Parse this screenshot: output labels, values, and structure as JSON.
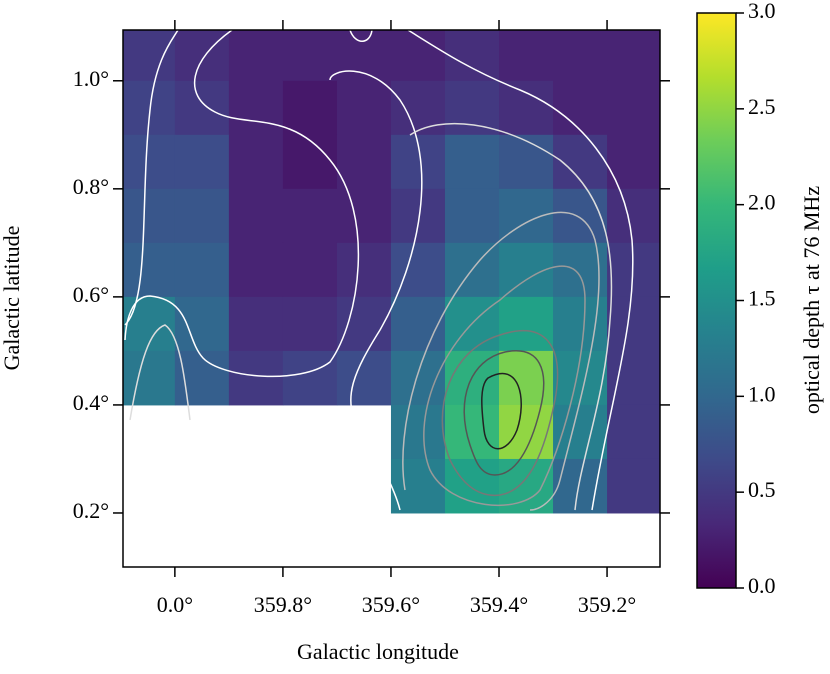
{
  "chart_data": {
    "type": "heatmap",
    "xlabel": "Galactic longitude",
    "ylabel": "Galactic latitude",
    "colorbar_label": "optical depth τ at 76 MHz",
    "colormap": "viridis",
    "x": [
      0.05,
      -0.05,
      -0.15,
      -0.25,
      -0.35,
      -0.45,
      -0.55,
      -0.65,
      -0.75,
      -0.85
    ],
    "y": [
      1.05,
      0.95,
      0.85,
      0.75,
      0.65,
      0.55,
      0.45,
      0.35,
      0.25,
      0.15
    ],
    "z": [
      [
        0.5,
        0.4,
        0.3,
        0.3,
        0.3,
        0.3,
        0.4,
        0.3,
        0.3,
        0.3
      ],
      [
        0.6,
        0.5,
        0.3,
        0.2,
        0.3,
        0.4,
        0.5,
        0.4,
        0.3,
        0.3
      ],
      [
        0.7,
        0.7,
        0.3,
        0.2,
        0.3,
        0.6,
        0.9,
        0.8,
        0.5,
        0.3
      ],
      [
        0.8,
        0.8,
        0.3,
        0.3,
        0.3,
        0.5,
        0.9,
        1.0,
        0.8,
        0.4
      ],
      [
        0.9,
        0.9,
        0.3,
        0.3,
        0.4,
        0.7,
        1.1,
        1.3,
        1.1,
        0.5
      ],
      [
        1.3,
        1.0,
        0.4,
        0.4,
        0.5,
        0.9,
        1.5,
        1.7,
        1.3,
        0.5
      ],
      [
        1.2,
        0.9,
        0.5,
        0.6,
        0.7,
        1.1,
        1.9,
        2.4,
        1.4,
        0.5
      ],
      [
        null,
        null,
        null,
        null,
        null,
        1.2,
        2.0,
        2.5,
        1.3,
        0.5
      ],
      [
        null,
        null,
        null,
        null,
        null,
        1.3,
        1.7,
        1.8,
        1.0,
        0.5
      ],
      [
        null,
        null,
        null,
        null,
        null,
        null,
        null,
        null,
        null,
        null
      ]
    ],
    "xlim": [
      0.096,
      -0.898
    ],
    "ylim": [
      0.1,
      1.094
    ],
    "xticks": [
      {
        "value": 0,
        "label": "0.0°"
      },
      {
        "value": -0.2,
        "label": "359.8°"
      },
      {
        "value": -0.4,
        "label": "359.6°"
      },
      {
        "value": -0.6,
        "label": "359.4°"
      },
      {
        "value": -0.8,
        "label": "359.2°"
      }
    ],
    "yticks": [
      {
        "value": 0.2,
        "label": "0.2°"
      },
      {
        "value": 0.4,
        "label": "0.4°"
      },
      {
        "value": 0.6,
        "label": "0.6°"
      },
      {
        "value": 0.8,
        "label": "0.8°"
      },
      {
        "value": 1.0,
        "label": "1.0°"
      }
    ],
    "clim": [
      0,
      3
    ],
    "cticks": [
      {
        "value": 0,
        "label": "0.0"
      },
      0.5,
      {
        "value": 1,
        "label": "1.0"
      },
      1.5,
      {
        "value": 2,
        "label": "2.0"
      },
      2.5,
      {
        "value": 3,
        "label": "3.0"
      }
    ]
  }
}
